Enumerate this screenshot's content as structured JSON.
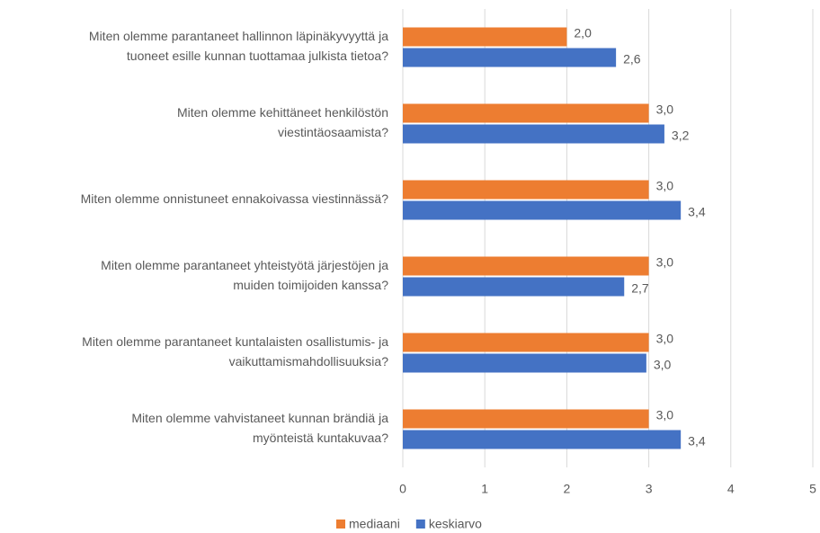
{
  "chart_data": {
    "type": "barh",
    "categories": [
      [
        "Miten olemme parantaneet hallinnon läpinäkyvyyttä ja",
        "tuoneet esille kunnan tuottamaa julkista tietoa?"
      ],
      [
        "Miten olemme kehittäneet henkilöstön",
        "viestintäosaamista?"
      ],
      [
        "Miten olemme onnistuneet ennakoivassa viestinnässä?"
      ],
      [
        "Miten olemme parantaneet yhteistyötä järjestöjen ja",
        "muiden toimijoiden kanssa?"
      ],
      [
        "Miten olemme parantaneet kuntalaisten osallistumis- ja",
        "vaikuttamismahdollisuuksia?"
      ],
      [
        "Miten olemme vahvistaneet kunnan brändiä ja",
        "myönteistä kuntakuvaa?"
      ]
    ],
    "series": [
      {
        "name": "mediaani",
        "color": "#ed7d31",
        "values": [
          2.0,
          3.0,
          3.0,
          3.0,
          3.0,
          3.0
        ],
        "value_labels": [
          "2,0",
          "3,0",
          "3,0",
          "3,0",
          "3,0",
          "3,0"
        ]
      },
      {
        "name": "keskiarvo",
        "color": "#4472c4",
        "values": [
          2.6,
          3.19,
          3.39,
          2.7,
          2.97,
          3.39
        ],
        "value_labels": [
          "2,6",
          "3,2",
          "3,4",
          "2,7",
          "3,0",
          "3,4"
        ]
      }
    ],
    "xlim": [
      0,
      5
    ],
    "xticks": [
      0,
      1,
      2,
      3,
      4,
      5
    ],
    "grid": true,
    "legend": "bottom"
  }
}
